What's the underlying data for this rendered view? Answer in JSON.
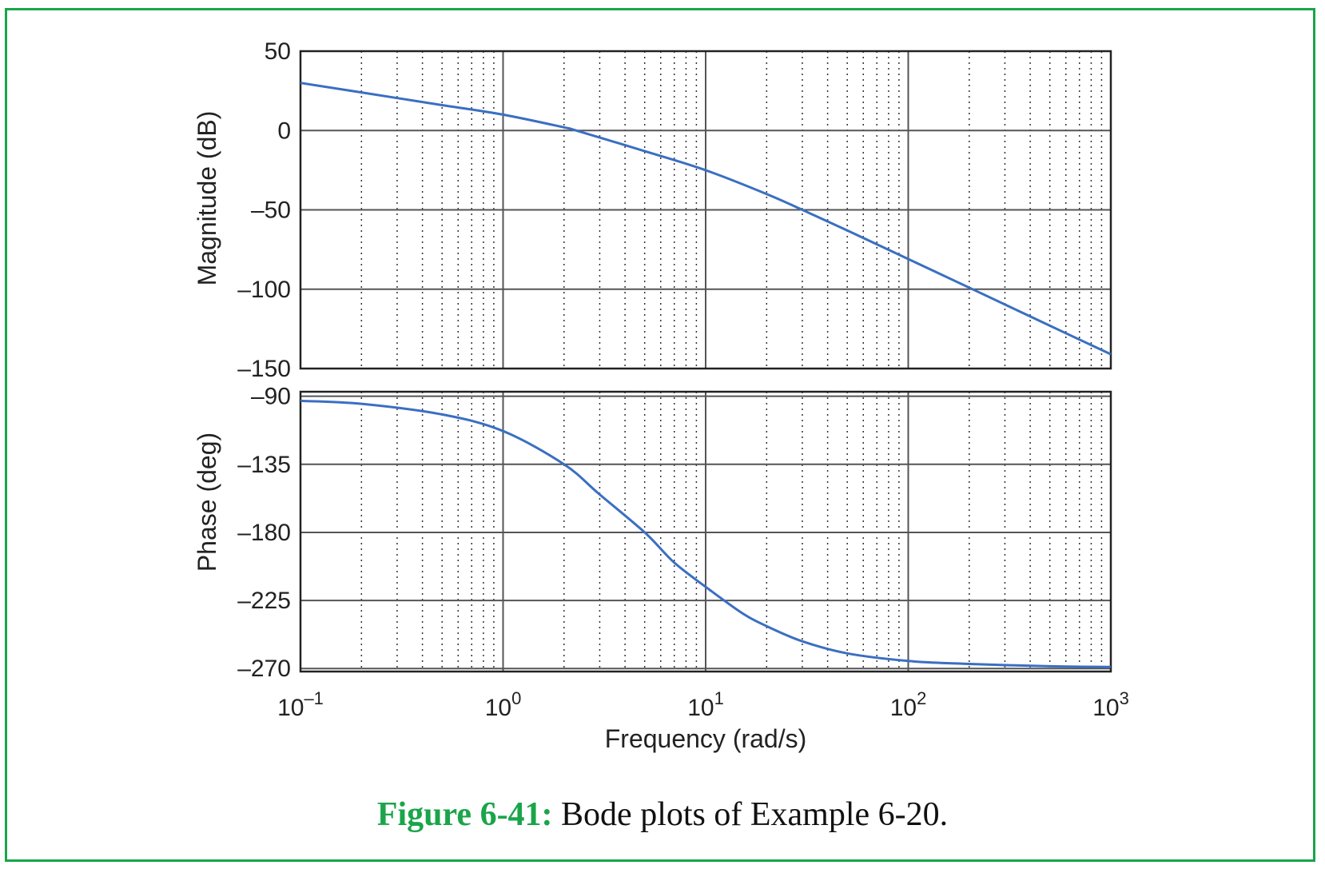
{
  "caption": {
    "label": "Figure 6-41:",
    "text": " Bode plots of Example 6-20."
  },
  "colors": {
    "frame": "#1aa54a",
    "series": "#3a6fc2",
    "grid_major": "#555555",
    "grid_minor": "#333333",
    "axis": "#222222"
  },
  "chart_data": [
    {
      "type": "line",
      "panel": "magnitude",
      "xscale": "log",
      "xlim": [
        0.1,
        1000
      ],
      "ylim": [
        -150,
        50
      ],
      "yticks": [
        50,
        0,
        -50,
        -100,
        -150
      ],
      "ytick_labels": [
        "50",
        "0",
        "–50",
        "–100",
        "–150"
      ],
      "ylabel": "Magnitude (dB)",
      "grid": true,
      "x": [
        0.1,
        0.2,
        0.5,
        1,
        2,
        2.3,
        5,
        10,
        20,
        30,
        50,
        100,
        200,
        500,
        1000
      ],
      "y": [
        30,
        24,
        16,
        10,
        2,
        0,
        -13,
        -25,
        -40,
        -50,
        -63,
        -81,
        -99,
        -123,
        -141
      ]
    },
    {
      "type": "line",
      "panel": "phase",
      "xscale": "log",
      "xlim": [
        0.1,
        1000
      ],
      "ylim": [
        -272,
        -87
      ],
      "yticks": [
        -90,
        -135,
        -180,
        -225,
        -270
      ],
      "ytick_labels": [
        "–90",
        "–135",
        "–180",
        "–225",
        "–270"
      ],
      "ylabel": "Phase (deg)",
      "xlabel": "Frequency (rad/s)",
      "xticks": [
        0.1,
        1,
        10,
        100,
        1000
      ],
      "xtick_labels": [
        {
          "base": "10",
          "exp": "–1"
        },
        {
          "base": "10",
          "exp": "0"
        },
        {
          "base": "10",
          "exp": "1"
        },
        {
          "base": "10",
          "exp": "2"
        },
        {
          "base": "10",
          "exp": "3"
        }
      ],
      "grid": true,
      "x": [
        0.1,
        0.2,
        0.5,
        1,
        2,
        3,
        5,
        7,
        10,
        15,
        20,
        30,
        50,
        100,
        200,
        500,
        1000
      ],
      "y": [
        -93,
        -95,
        -102,
        -113,
        -135,
        -155,
        -180,
        -200,
        -216,
        -233,
        -242,
        -252,
        -260,
        -265,
        -267,
        -268.5,
        -269
      ]
    }
  ]
}
